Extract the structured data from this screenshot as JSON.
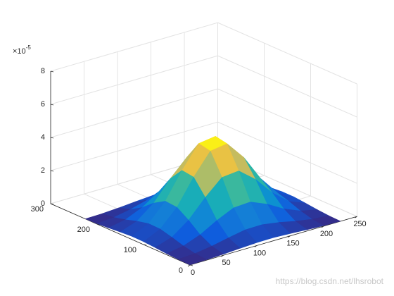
{
  "chart_data": {
    "type": "surface",
    "x": [
      0,
      25,
      50,
      75,
      100,
      125,
      150,
      175,
      200,
      225
    ],
    "y": [
      0,
      25,
      50,
      75,
      100,
      125,
      150,
      175,
      200,
      225
    ],
    "z": [
      [
        0.01,
        0.03,
        0.07,
        0.13,
        0.18,
        0.19,
        0.14,
        0.08,
        0.03,
        0.01
      ],
      [
        0.03,
        0.09,
        0.24,
        0.45,
        0.64,
        0.66,
        0.5,
        0.28,
        0.11,
        0.03
      ],
      [
        0.07,
        0.24,
        0.62,
        1.19,
        1.66,
        1.72,
        1.3,
        0.72,
        0.3,
        0.09
      ],
      [
        0.13,
        0.45,
        1.19,
        2.27,
        3.19,
        3.29,
        2.49,
        1.39,
        0.57,
        0.17
      ],
      [
        0.18,
        0.64,
        1.66,
        3.19,
        4.47,
        4.62,
        3.5,
        1.94,
        0.79,
        0.24
      ],
      [
        0.19,
        0.66,
        1.72,
        3.29,
        4.62,
        4.76,
        3.61,
        2.01,
        0.82,
        0.24
      ],
      [
        0.14,
        0.5,
        1.3,
        2.49,
        3.5,
        3.61,
        2.73,
        1.52,
        0.62,
        0.18
      ],
      [
        0.08,
        0.28,
        0.72,
        1.39,
        1.94,
        2.01,
        1.52,
        0.84,
        0.35,
        0.1
      ],
      [
        0.03,
        0.11,
        0.3,
        0.57,
        0.79,
        0.82,
        0.62,
        0.35,
        0.14,
        0.04
      ],
      [
        0.01,
        0.03,
        0.09,
        0.17,
        0.24,
        0.24,
        0.18,
        0.1,
        0.04,
        0.01
      ]
    ],
    "colormap": [
      "#352a87",
      "#0f5cdd",
      "#1481d6",
      "#06a4ca",
      "#2eb7a4",
      "#87bf77",
      "#d1bb59",
      "#fec832",
      "#f9fb0e"
    ],
    "xlim": [
      0,
      250
    ],
    "ylim": [
      0,
      300
    ],
    "zlim": [
      0,
      8
    ],
    "xticks": [
      0,
      50,
      100,
      150,
      200,
      250
    ],
    "yticks": [
      0,
      100,
      200,
      300
    ],
    "zticks": [
      0,
      2,
      4,
      6,
      8
    ],
    "zscale_base": "×10",
    "zscale_exponent": "-5",
    "grid": true,
    "watermark": "https://blog.csdn.net/lhsrobot"
  }
}
